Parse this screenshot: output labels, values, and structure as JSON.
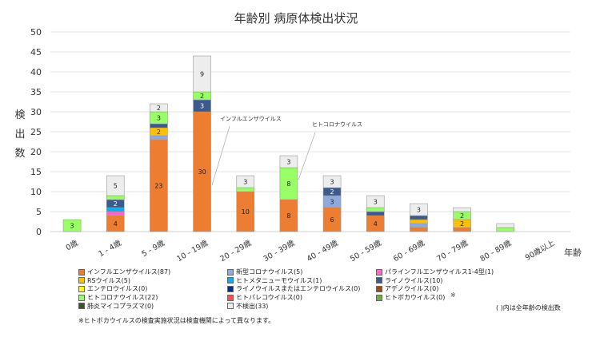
{
  "chart_data": {
    "type": "bar",
    "stacked": true,
    "title": "年齢別 病原体検出状況",
    "xlabel": "年齢",
    "ylabel": "検出数",
    "ylim": [
      0,
      50
    ],
    "yticks": [
      0,
      5,
      10,
      15,
      20,
      25,
      30,
      35,
      40,
      45,
      50
    ],
    "grid": true,
    "legend_position": "bottom",
    "categories": [
      "0歳",
      "1 - 4歳",
      "5 - 9歳",
      "10 - 19歳",
      "20 - 29歳",
      "30 - 39歳",
      "40 - 49歳",
      "50 - 59歳",
      "60 - 69歳",
      "70 - 79歳",
      "80 - 89歳",
      "90歳以上"
    ],
    "series": [
      {
        "name": "インフルエンザウイルス(87)",
        "color": "#ED7D31",
        "values": [
          0,
          4,
          23,
          30,
          10,
          8,
          6,
          4,
          1,
          1,
          0,
          0
        ]
      },
      {
        "name": "新型コロナウイルス(5)",
        "color": "#8EA9DB",
        "values": [
          0,
          0,
          1,
          0,
          0,
          0,
          3,
          0,
          1,
          0,
          0,
          0
        ]
      },
      {
        "name": "パラインフルエンザウイルス1-4型(1)",
        "color": "#FF66CC",
        "values": [
          0,
          1,
          0,
          0,
          0,
          0,
          0,
          0,
          0,
          0,
          0,
          0
        ]
      },
      {
        "name": "RSウイルス(5)",
        "color": "#FFC000",
        "values": [
          0,
          0,
          2,
          0,
          0,
          0,
          0,
          0,
          1,
          2,
          0,
          0
        ]
      },
      {
        "name": "ヒトメタニューモウイルス(1)",
        "color": "#00B0F0",
        "values": [
          0,
          1,
          0,
          0,
          0,
          0,
          0,
          0,
          0,
          0,
          0,
          0
        ]
      },
      {
        "name": "ライノウイルス(10)",
        "color": "#3C5A8C",
        "values": [
          0,
          2,
          1,
          3,
          0,
          0,
          2,
          1,
          1,
          0,
          0,
          0
        ]
      },
      {
        "name": "エンテロウイルス(0)",
        "color": "#FFFF00",
        "values": [
          0,
          0,
          0,
          0,
          0,
          0,
          0,
          0,
          0,
          0,
          0,
          0
        ]
      },
      {
        "name": "ライノウイルスまたはエンテロウイルス(0)",
        "color": "#002F8E",
        "values": [
          0,
          0,
          0,
          0,
          0,
          0,
          0,
          0,
          0,
          0,
          0,
          0
        ]
      },
      {
        "name": "アデノウイルス(0)",
        "color": "#9C4A1A",
        "values": [
          0,
          0,
          0,
          0,
          0,
          0,
          0,
          0,
          0,
          0,
          0,
          0
        ]
      },
      {
        "name": "ヒトコロナウイルス(22)",
        "color": "#99FF66",
        "values": [
          3,
          1,
          3,
          2,
          1,
          8,
          0,
          1,
          0,
          2,
          1,
          0
        ]
      },
      {
        "name": "ヒトパレコウイルス(0)",
        "color": "#FF5050",
        "values": [
          0,
          0,
          0,
          0,
          0,
          0,
          0,
          0,
          0,
          0,
          0,
          0
        ]
      },
      {
        "name": "ヒトボカウイルス(0)",
        "color": "#70AD47",
        "values": [
          0,
          0,
          0,
          0,
          0,
          0,
          0,
          0,
          0,
          0,
          0,
          0
        ]
      },
      {
        "name": "肺炎マイコプラズマ(0)",
        "color": "#375623",
        "values": [
          0,
          0,
          0,
          0,
          0,
          0,
          0,
          0,
          0,
          0,
          0,
          0
        ]
      },
      {
        "name": "不検出(33)",
        "color": "#EDEDED",
        "values": [
          0,
          5,
          2,
          9,
          3,
          3,
          3,
          3,
          3,
          1,
          1,
          0
        ]
      }
    ],
    "annotations": [
      "インフルエンザウイルス",
      "ヒトコロナウイルス"
    ]
  },
  "legend_mark": "※",
  "notes": {
    "boca": "※ヒトボカウイルスの検査実施状況は検査機関によって異なります。",
    "total": "( )内は全年齢の検出数"
  }
}
